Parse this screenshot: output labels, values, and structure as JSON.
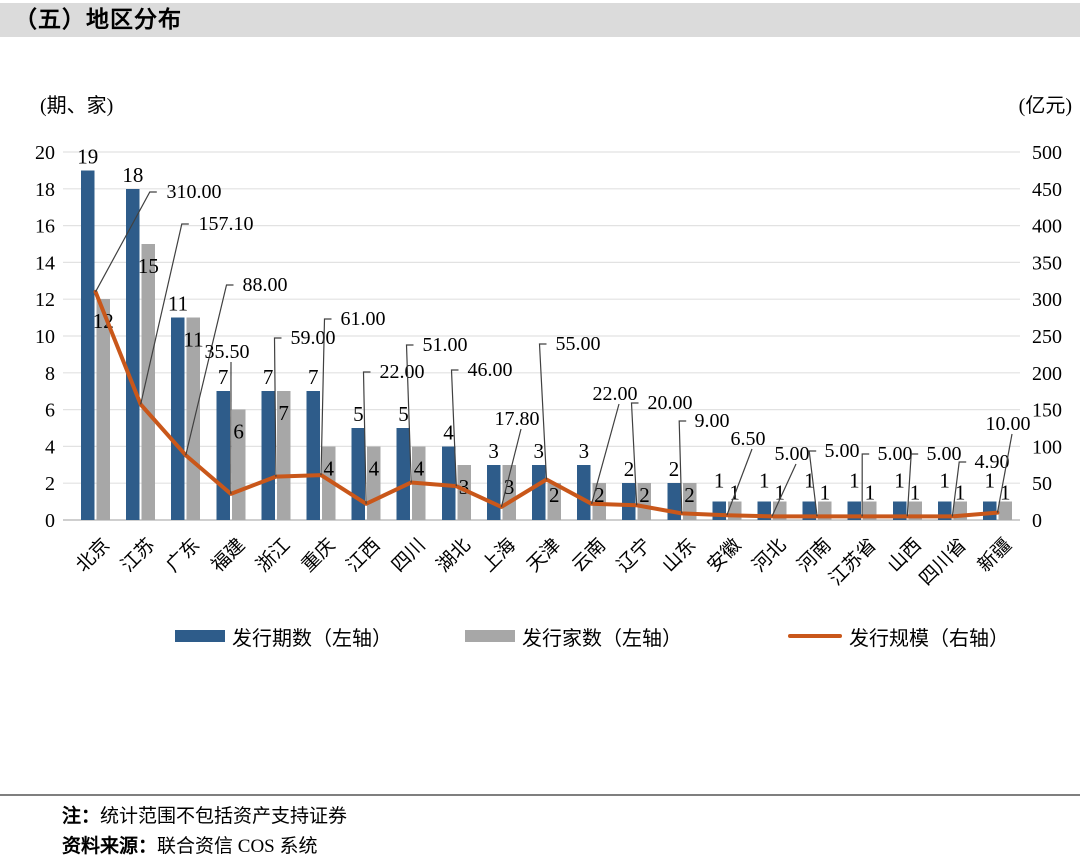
{
  "header": {
    "title": "（五）地区分布"
  },
  "chart_data": {
    "type": "bar+line combo",
    "left_axis": {
      "unit": "(期、家)",
      "min": 0,
      "max": 20,
      "step": 2
    },
    "right_axis": {
      "unit": "(亿元)",
      "min": 0,
      "max": 500,
      "step": 50
    },
    "grid": true,
    "legend_position": "bottom",
    "categories": [
      "北京",
      "江苏",
      "广东",
      "福建",
      "浙江",
      "重庆",
      "江西",
      "四川",
      "湖北",
      "上海",
      "天津",
      "云南",
      "辽宁",
      "山东",
      "安徽",
      "河北",
      "河南",
      "江苏省",
      "山西",
      "四川省",
      "新疆"
    ],
    "series": [
      {
        "name": "发行期数（左轴）",
        "type": "bar",
        "axis": "left",
        "color": "#2E5C8A",
        "values": [
          19,
          18,
          11,
          7,
          7,
          7,
          5,
          5,
          4,
          3,
          3,
          3,
          2,
          2,
          1,
          1,
          1,
          1,
          1,
          1,
          1
        ]
      },
      {
        "name": "发行家数（左轴）",
        "type": "bar",
        "axis": "left",
        "color": "#A7A7A7",
        "values": [
          12,
          15,
          11,
          6,
          7,
          4,
          4,
          4,
          3,
          3,
          2,
          2,
          2,
          2,
          1,
          1,
          1,
          1,
          1,
          1,
          1
        ]
      },
      {
        "name": "发行规模（右轴）",
        "type": "line",
        "axis": "right",
        "color": "#C9571A",
        "values": [
          310.0,
          157.1,
          88.0,
          35.5,
          59.0,
          61.0,
          22.0,
          51.0,
          46.0,
          17.8,
          55.0,
          22.0,
          20.0,
          9.0,
          6.5,
          5.0,
          5.0,
          5.0,
          5.0,
          4.9,
          10.0
        ],
        "value_labels": [
          "310.00",
          "157.10",
          "88.00",
          "35.50",
          "59.00",
          "61.00",
          "22.00",
          "51.00",
          "46.00",
          "17.80",
          "55.00",
          "22.00",
          "20.00",
          "9.00",
          "6.50",
          "5.00",
          "5.00",
          "5.00",
          "5.00",
          "4.90",
          "10.00"
        ]
      }
    ]
  },
  "notes": {
    "note_prefix": "注：",
    "note_text": "统计范围不包括资产支持证券",
    "source_prefix": "资料来源：",
    "source_text": "联合资信 COS 系统"
  }
}
